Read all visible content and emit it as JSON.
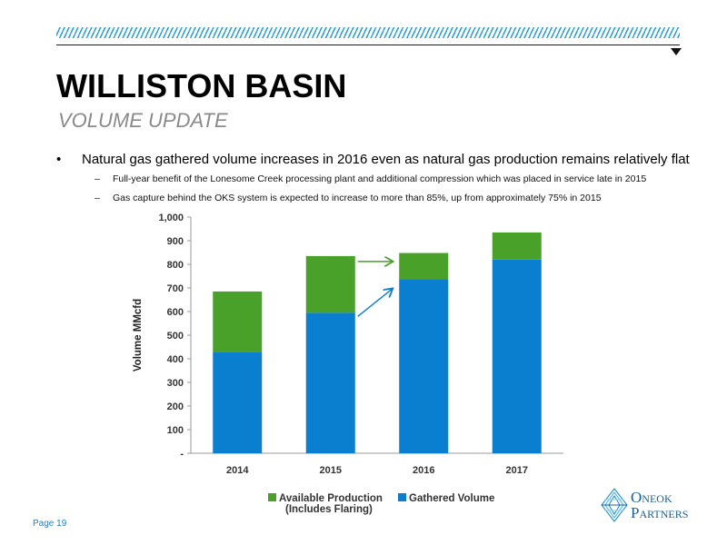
{
  "header": {
    "title": "WILLISTON BASIN",
    "subtitle": "VOLUME UPDATE"
  },
  "bullets": {
    "main": "Natural gas gathered volume increases in 2016 even as natural gas production remains relatively flat",
    "marker": "•",
    "dash": "–",
    "sub": [
      "Full-year benefit of the Lonesome Creek processing plant and additional compression which was placed in service late in 2015",
      "Gas capture behind the OKS system is expected to increase to more than 85%, up from approximately 75% in 2015"
    ]
  },
  "chart_data": {
    "type": "bar",
    "stacked": true,
    "categories": [
      "2014",
      "2015",
      "2016",
      "2017"
    ],
    "series": [
      {
        "name": "Gathered Volume",
        "values": [
          430,
          595,
          738,
          820
        ],
        "color": "#0a7fd0"
      },
      {
        "name": "Available Production (Includes Flaring)",
        "values": [
          255,
          240,
          110,
          115
        ],
        "color": "#4aa12a"
      }
    ],
    "ylabel": "Volume  MMcfd",
    "ylim": [
      0,
      1000
    ],
    "yticks": [
      0,
      100,
      200,
      300,
      400,
      500,
      600,
      700,
      800,
      900,
      1000
    ],
    "ytick_labels": [
      "-",
      "100",
      "200",
      "300",
      "400",
      "500",
      "600",
      "700",
      "800",
      "900",
      "1,000"
    ],
    "annotations": [
      "green arrow from 2015 stack top to 2016 stack top",
      "blue arrow from 2015 gathered volume to 2016 gathered volume"
    ],
    "legend_position": "bottom",
    "grid": false
  },
  "legend": {
    "available_line1": "Available Production",
    "available_line2": "(Includes Flaring)",
    "gathered": "Gathered Volume"
  },
  "footer": {
    "page": "Page 19",
    "logo_line1_big": "O",
    "logo_line1_small": "NEOK",
    "logo_line2_big": "P",
    "logo_line2_small": "ARTNERS"
  }
}
